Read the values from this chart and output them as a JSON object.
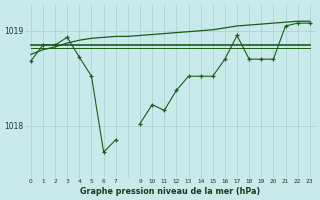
{
  "title": "Graphe pression niveau de la mer (hPa)",
  "bg_color": "#c8eaea",
  "grid_color": "#a8cece",
  "line_color": "#1a5c1a",
  "x_values": [
    0,
    1,
    2,
    3,
    4,
    5,
    6,
    7,
    8,
    9,
    10,
    11,
    12,
    13,
    14,
    15,
    16,
    17,
    18,
    19,
    20,
    21,
    22,
    23
  ],
  "x_labels": [
    "0",
    "1",
    "2",
    "3",
    "4",
    "5",
    "6",
    "7",
    "",
    "9",
    "10",
    "11",
    "12",
    "13",
    "14",
    "15",
    "16",
    "17",
    "18",
    "19",
    "20",
    "21",
    "22",
    "23"
  ],
  "zigzag": [
    1018.68,
    1018.85,
    1018.85,
    1018.93,
    1018.72,
    1018.52,
    1017.72,
    1017.85,
    null,
    1018.02,
    1018.22,
    1018.16,
    1018.37,
    1018.52,
    1018.52,
    1018.52,
    1018.7,
    1018.95,
    1018.7,
    1018.7,
    1018.7,
    1019.05,
    1019.08,
    1019.08
  ],
  "rising_line": [
    1018.75,
    1018.8,
    1018.83,
    1018.87,
    1018.9,
    1018.92,
    1018.93,
    1018.94,
    1018.94,
    1018.95,
    1018.96,
    1018.97,
    1018.98,
    1018.99,
    1019.0,
    1019.01,
    1019.03,
    1019.05,
    1019.06,
    1019.07,
    1019.08,
    1019.09,
    1019.1,
    1019.1
  ],
  "flat_upper": [
    1018.85,
    1018.85,
    1018.85,
    1018.85,
    1018.85,
    1018.85,
    1018.85,
    1018.85,
    1018.85,
    1018.85,
    1018.85,
    1018.85,
    1018.85,
    1018.85,
    1018.85,
    1018.85,
    1018.85,
    1018.85,
    1018.85,
    1018.85,
    1018.85,
    1018.85,
    1018.85,
    1018.85
  ],
  "flat_lower": [
    1018.82,
    1018.82,
    1018.82,
    1018.82,
    1018.82,
    1018.82,
    1018.82,
    1018.82,
    1018.82,
    1018.82,
    1018.82,
    1018.82,
    1018.82,
    1018.82,
    1018.82,
    1018.82,
    1018.82,
    1018.82,
    1018.82,
    1018.82,
    1018.82,
    1018.82,
    1018.82,
    1018.82
  ],
  "ylim_min": 1017.45,
  "ylim_max": 1019.28,
  "ytick_vals": [
    1018,
    1019
  ]
}
